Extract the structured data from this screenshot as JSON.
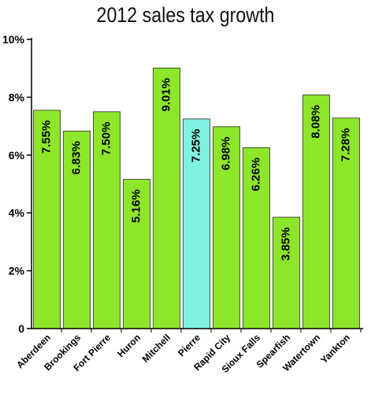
{
  "chart_data": {
    "type": "bar",
    "title": "2012 sales tax growth",
    "xlabel": "",
    "ylabel": "",
    "ylim": [
      0,
      10
    ],
    "yticks": [
      {
        "value": 0,
        "label": "0"
      },
      {
        "value": 2,
        "label": "2%"
      },
      {
        "value": 4,
        "label": "4%"
      },
      {
        "value": 6,
        "label": "6%"
      },
      {
        "value": 8,
        "label": "8%"
      },
      {
        "value": 10,
        "label": "10%"
      }
    ],
    "categories": [
      "Aberdeen",
      "Brookings",
      "Fort Pierre",
      "Huron",
      "Mitchell",
      "Pierre",
      "Rapid City",
      "Sioux Falls",
      "Spearfish",
      "Watertown",
      "Yankton"
    ],
    "values": [
      7.55,
      6.83,
      7.5,
      5.16,
      9.01,
      7.25,
      6.98,
      6.26,
      3.85,
      8.08,
      7.28
    ],
    "data_labels": [
      "7.55%",
      "6.83%",
      "7.50%",
      "5.16%",
      "9.01%",
      "7.25%",
      "6.98%",
      "6.26%",
      "3.85%",
      "8.08%",
      "7.28%"
    ],
    "grid": false,
    "legend": "none",
    "colors": {
      "bar": "#8ee62a",
      "highlight_bar": "#7ff2e0",
      "bar_stroke": "#2a2a2a",
      "axis": "#000000"
    },
    "highlight_index": 5
  }
}
